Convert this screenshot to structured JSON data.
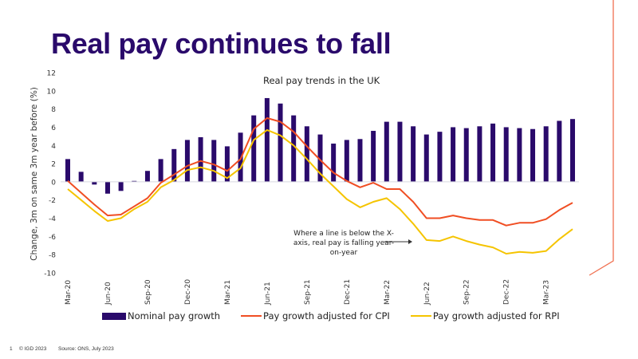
{
  "page": {
    "title": "Real pay continues to fall",
    "footer_page": "1",
    "footer_copyright": "© IGD 2023",
    "footer_source": "Source: ONS, July 2023",
    "annotation": "Where a line is below the X-axis, real pay is falling year-on-year",
    "colors": {
      "title": "#2a0a6b",
      "bars": "#2a0a6b",
      "cpi": "#f04e23",
      "rpi": "#f5c400",
      "accent_frame": "#f07050"
    }
  },
  "chart_data": {
    "type": "bar",
    "title": "Real pay trends in the UK",
    "xlabel": "",
    "ylabel": "Change, 3m on same 3m year before (%)",
    "ylim": [
      -10,
      12
    ],
    "yticks": [
      12,
      10,
      8,
      6,
      4,
      2,
      0,
      -2,
      -4,
      -6,
      -8,
      -10
    ],
    "grid": false,
    "legend_position": "bottom",
    "categories": [
      "Mar-20",
      "Apr-20",
      "May-20",
      "Jun-20",
      "Jul-20",
      "Aug-20",
      "Sep-20",
      "Oct-20",
      "Nov-20",
      "Dec-20",
      "Jan-21",
      "Feb-21",
      "Mar-21",
      "Apr-21",
      "May-21",
      "Jun-21",
      "Jul-21",
      "Aug-21",
      "Sep-21",
      "Oct-21",
      "Nov-21",
      "Dec-21",
      "Jan-22",
      "Feb-22",
      "Mar-22",
      "Apr-22",
      "May-22",
      "Jun-22",
      "Jul-22",
      "Aug-22",
      "Sep-22",
      "Oct-22",
      "Nov-22",
      "Dec-22",
      "Jan-23",
      "Feb-23",
      "Mar-23",
      "Apr-23",
      "May-23"
    ],
    "xtick_labels": [
      "Mar-20",
      "Jun-20",
      "Sep-20",
      "Dec-20",
      "Mar-21",
      "Jun-21",
      "Sep-21",
      "Dec-21",
      "Mar-22",
      "Jun-22",
      "Sep-22",
      "Dec-22",
      "Mar-23"
    ],
    "series": [
      {
        "name": "Nominal pay growth",
        "type": "bar",
        "color": "#2a0a6b",
        "values": [
          2.5,
          1.1,
          -0.3,
          -1.3,
          -1.0,
          0.1,
          1.2,
          2.5,
          3.6,
          4.6,
          4.9,
          4.6,
          3.9,
          5.4,
          7.3,
          9.2,
          8.6,
          7.3,
          6.1,
          5.2,
          4.2,
          4.6,
          4.7,
          5.6,
          6.6,
          6.6,
          6.1,
          5.2,
          5.5,
          6.0,
          5.9,
          6.1,
          6.4,
          6.0,
          5.9,
          5.8,
          6.1,
          6.7,
          6.9
        ]
      },
      {
        "name": "Pay growth adjusted for CPI",
        "type": "line",
        "color": "#f04e23",
        "values": [
          0.1,
          -1.2,
          -2.5,
          -3.7,
          -3.6,
          -2.7,
          -1.8,
          -0.1,
          0.8,
          1.75,
          2.3,
          1.9,
          1.2,
          2.5,
          5.8,
          7.0,
          6.6,
          5.5,
          3.9,
          2.4,
          1.0,
          0.1,
          -0.6,
          -0.1,
          -0.8,
          -0.8,
          -2.2,
          -4.0,
          -4.0,
          -3.7,
          -4.0,
          -4.2,
          -4.2,
          -4.8,
          -4.5,
          -4.5,
          -4.1,
          -3.1,
          -2.3
        ]
      },
      {
        "name": "Pay growth adjusted for RPI",
        "type": "line",
        "color": "#f5c400",
        "values": [
          -0.8,
          -2.0,
          -3.2,
          -4.3,
          -4.0,
          -3.0,
          -2.2,
          -0.6,
          0.2,
          1.3,
          1.6,
          1.2,
          0.4,
          1.5,
          4.6,
          5.7,
          5.1,
          4.0,
          2.5,
          0.9,
          -0.5,
          -1.9,
          -2.8,
          -2.2,
          -1.8,
          -3.0,
          -4.6,
          -6.4,
          -6.5,
          -6.0,
          -6.5,
          -6.9,
          -7.2,
          -7.9,
          -7.7,
          -7.8,
          -7.6,
          -6.3,
          -5.2
        ]
      }
    ]
  }
}
